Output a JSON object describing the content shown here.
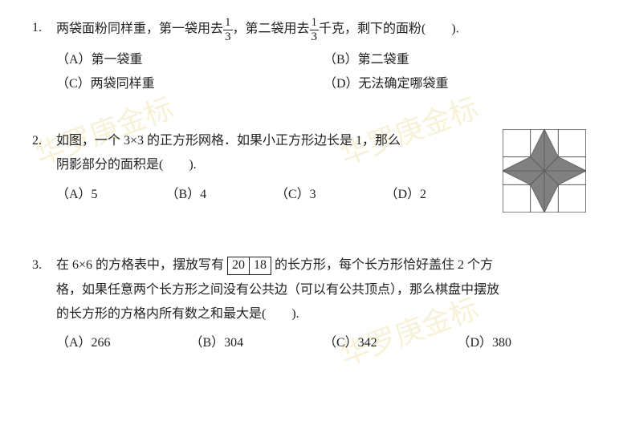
{
  "watermarks": [
    "华罗庚金标",
    "华罗庚金标",
    "华罗庚金标"
  ],
  "q1": {
    "number": "1.",
    "text_pre": "两袋面粉同样重，第一袋用去",
    "frac1_num": "1",
    "frac1_den": "3",
    "text_mid": "，第二袋用去",
    "frac2_num": "1",
    "frac2_den": "3",
    "text_post": "千克，剩下的面粉(　　).",
    "optA": "（A）第一袋重",
    "optB": "（B）第二袋重",
    "optC": "（C）两袋同样重",
    "optD": "（D）无法确定哪袋重"
  },
  "q2": {
    "number": "2.",
    "line1": "如图，一个 3×3 的正方形网格．如果小正方形边长是 1，那么",
    "line2": "阴影部分的面积是(　　).",
    "optA": "（A）5",
    "optB": "（B）4",
    "optC": "（C）3",
    "optD": "（D）2",
    "figure": {
      "grid_size": 3,
      "cell": 34,
      "stroke": "#5a5a5a",
      "fill": "#808080",
      "bg": "#ffffff"
    }
  },
  "q3": {
    "number": "3.",
    "text_pre": "在 6×6 的方格表中，摆放写有",
    "box1": "20",
    "box2": "18",
    "text_post1": "的长方形，每个长方形恰好盖住 2 个方",
    "line2": "格，如果任意两个长方形之间没有公共边（可以有公共顶点），那么棋盘中摆放",
    "line3": "的长方形的方格内所有数之和最大是(　　).",
    "optA": "（A）266",
    "optB": "（B）304",
    "optC": "（C）342",
    "optD": "（D）380"
  }
}
